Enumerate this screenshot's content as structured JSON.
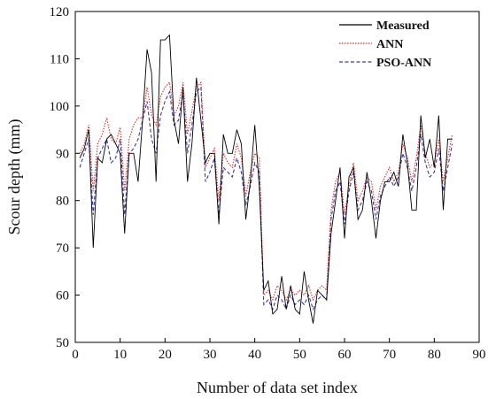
{
  "chart_data": {
    "type": "line",
    "title": "",
    "xlabel": "Number of data set index",
    "ylabel": "Scour depth (mm)",
    "xlim": [
      0,
      90
    ],
    "ylim": [
      50,
      120
    ],
    "xticks": [
      0,
      10,
      20,
      30,
      40,
      50,
      60,
      70,
      80,
      90
    ],
    "yticks": [
      50,
      60,
      70,
      80,
      90,
      100,
      110,
      120
    ],
    "grid": false,
    "legend": "top-right",
    "x": [
      1,
      2,
      3,
      4,
      5,
      6,
      7,
      8,
      9,
      10,
      11,
      12,
      13,
      14,
      15,
      16,
      17,
      18,
      19,
      20,
      21,
      22,
      23,
      24,
      25,
      26,
      27,
      28,
      29,
      30,
      31,
      32,
      33,
      34,
      35,
      36,
      37,
      38,
      39,
      40,
      41,
      42,
      43,
      44,
      45,
      46,
      47,
      48,
      49,
      50,
      51,
      52,
      53,
      54,
      55,
      56,
      57,
      58,
      59,
      60,
      61,
      62,
      63,
      64,
      65,
      66,
      67,
      68,
      69,
      70,
      71,
      72,
      73,
      74,
      75,
      76,
      77,
      78,
      79,
      80,
      81,
      82,
      83,
      84
    ],
    "series": [
      {
        "name": "Measured",
        "color": "#000000",
        "dash": "solid",
        "values": [
          89,
          91,
          95,
          70,
          89,
          88,
          93,
          94,
          92,
          90,
          73,
          90,
          90,
          84,
          97,
          112,
          107,
          84,
          114,
          114,
          115,
          97,
          92,
          104,
          84,
          92,
          106,
          97,
          88,
          90,
          90,
          75,
          94,
          90,
          90,
          95,
          92,
          76,
          84,
          96,
          83,
          61,
          63,
          56,
          57,
          64,
          57,
          62,
          57,
          56,
          65,
          59,
          54,
          61,
          60,
          59,
          73,
          80,
          87,
          72,
          85,
          87,
          76,
          78,
          86,
          80,
          72,
          80,
          84,
          84,
          86,
          83,
          94,
          88,
          78,
          78,
          98,
          89,
          93,
          87,
          98,
          78,
          93,
          93
        ],
        "_unused": false
      },
      {
        "name": "ANN",
        "color": "#e0302a",
        "dash": "dotted",
        "values": [
          90,
          92,
          96,
          82,
          92,
          94,
          97.5,
          93,
          92,
          95.5,
          82,
          93,
          96,
          97.5,
          97.5,
          104,
          98,
          96,
          102,
          104,
          105,
          98,
          100,
          105,
          94,
          99,
          104,
          105,
          87,
          89,
          91,
          80,
          90,
          88,
          87,
          92,
          89,
          81,
          86,
          90,
          89,
          60,
          61,
          59,
          62,
          61,
          59,
          61,
          60,
          61,
          60,
          62,
          59,
          61,
          62,
          61,
          78,
          84,
          86,
          77,
          83,
          88,
          80,
          82,
          85,
          84,
          78,
          83,
          85,
          87,
          84,
          86,
          92,
          89,
          84,
          89,
          96,
          90,
          87,
          88,
          93,
          84,
          89,
          94
        ]
      },
      {
        "name": "PSO-ANN",
        "color": "#3a3aa8",
        "dash": "dashed",
        "values": [
          87,
          90,
          93,
          77,
          89,
          91,
          93,
          88,
          89,
          93,
          77,
          90,
          91,
          93,
          97,
          101,
          93,
          90,
          98,
          101,
          103,
          96,
          97,
          103,
          90,
          96,
          103,
          104,
          84,
          86,
          89,
          77,
          87,
          86,
          85,
          89,
          86,
          79,
          83,
          88,
          86,
          58,
          59,
          57,
          60,
          59,
          57,
          60,
          58,
          59,
          58,
          60,
          57,
          59,
          60,
          59,
          76,
          82,
          84,
          75,
          82,
          86,
          78,
          80,
          84,
          82,
          76,
          81,
          83,
          85,
          83,
          85,
          90,
          87,
          82,
          87,
          94,
          88,
          85,
          86,
          91,
          82,
          87,
          92
        ]
      }
    ]
  }
}
